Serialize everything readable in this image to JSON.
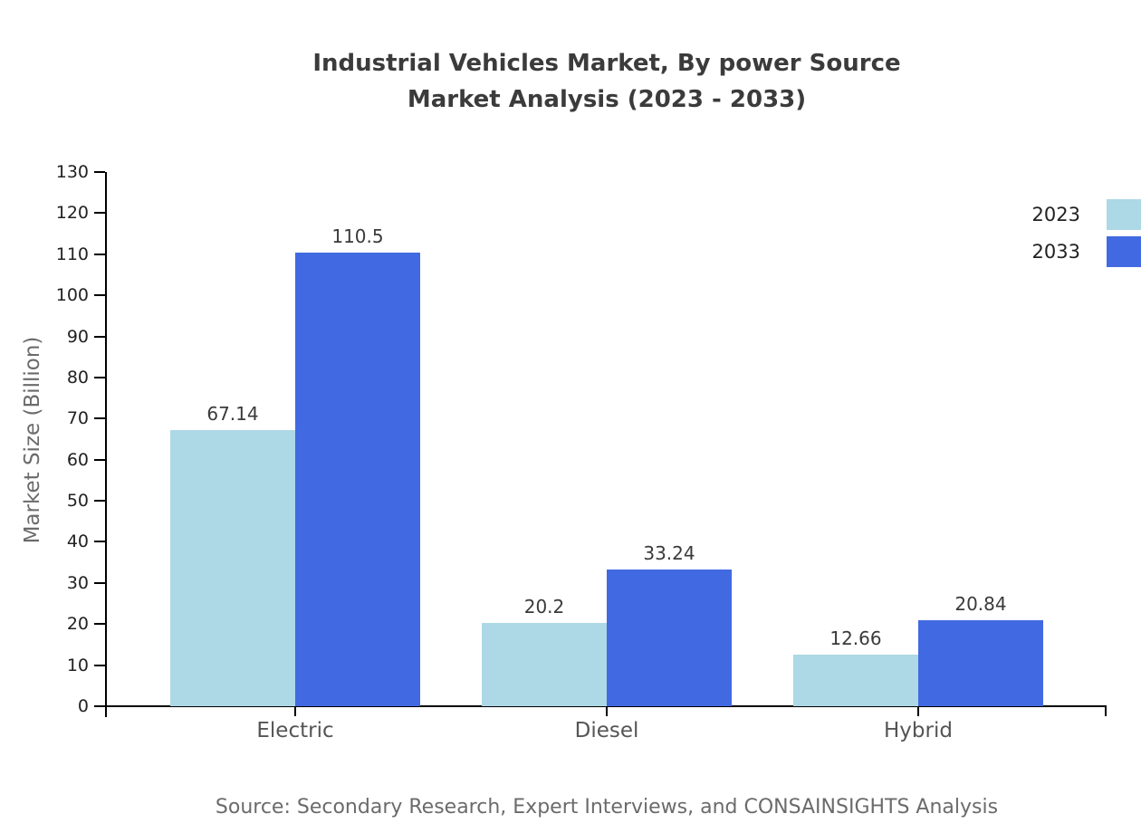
{
  "title": {
    "line1": "Industrial Vehicles Market, By power Source",
    "line2": "Market Analysis (2023 - 2033)"
  },
  "chart_data": {
    "type": "bar",
    "categories": [
      "Electric",
      "Diesel",
      "Hybrid"
    ],
    "series": [
      {
        "name": "2023",
        "color": "#ADD8E6",
        "values": [
          67.14,
          20.2,
          12.66
        ]
      },
      {
        "name": "2033",
        "color": "#4169E1",
        "values": [
          110.5,
          33.24,
          20.84
        ]
      }
    ],
    "value_labels": [
      [
        "67.14",
        "20.2",
        "12.66"
      ],
      [
        "110.5",
        "33.24",
        "20.84"
      ]
    ],
    "xlabel": "",
    "ylabel": "Market Size (Billion)",
    "ylim": [
      0,
      130
    ],
    "yticks": [
      0,
      10,
      20,
      30,
      40,
      50,
      60,
      70,
      80,
      90,
      100,
      110,
      120,
      130
    ],
    "grid": false,
    "legend_position": "upper right"
  },
  "source": "Source: Secondary Research, Expert Interviews, and CONSAINSIGHTS Analysis",
  "colors": {
    "series_2023": "#ADD8E6",
    "series_2033": "#4169E1",
    "axis": "#000000",
    "title_text": "#3b3b3b",
    "muted_text": "#6b6b6b"
  }
}
